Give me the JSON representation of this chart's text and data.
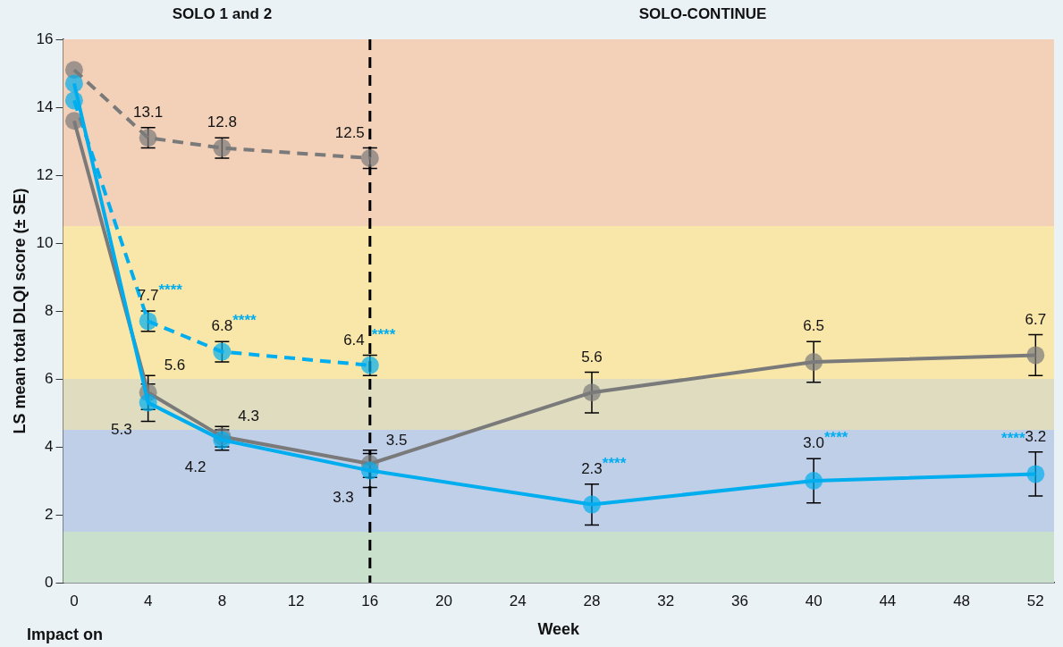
{
  "chart_data": {
    "type": "line",
    "xlabel": "Week",
    "ylabel": "LS mean total DLQI score (± SE)",
    "xlim": [
      -0.6,
      53
    ],
    "xticks": [
      0,
      4,
      8,
      12,
      16,
      20,
      24,
      28,
      32,
      36,
      40,
      44,
      48,
      52
    ],
    "ylim": [
      0,
      16
    ],
    "yticks": [
      0,
      2,
      4,
      6,
      8,
      10,
      12,
      14,
      16
    ],
    "grid": false,
    "legend": false,
    "marker": "circle",
    "series": [
      {
        "color": "#7a7a7a",
        "line_style": "dashed",
        "x": [
          0,
          4,
          8,
          16
        ],
        "values": [
          15.1,
          13.1,
          12.8,
          12.5
        ],
        "errors": [
          null,
          0.3,
          0.3,
          0.3
        ],
        "value_labels": [
          null,
          "13.1",
          "12.8",
          "12.5"
        ]
      },
      {
        "color": "#00aeef",
        "line_style": "dashed",
        "x": [
          0,
          4,
          8,
          16
        ],
        "values": [
          14.2,
          7.7,
          6.8,
          6.4
        ],
        "errors": [
          null,
          0.3,
          0.3,
          0.3
        ],
        "value_labels": [
          null,
          "7.7",
          "6.8",
          "6.4"
        ]
      },
      {
        "color": "#7a7a7a",
        "line_style": "solid",
        "x": [
          0,
          4,
          8,
          16,
          28,
          40,
          52
        ],
        "values": [
          13.6,
          5.6,
          4.3,
          3.5,
          5.6,
          6.5,
          6.7
        ],
        "errors": [
          null,
          0.5,
          0.3,
          0.4,
          0.6,
          0.6,
          0.6
        ],
        "value_labels": [
          null,
          "5.6",
          "4.3",
          "3.5",
          "5.6",
          "6.5",
          "6.7"
        ]
      },
      {
        "color": "#00aeef",
        "line_style": "solid",
        "x": [
          0,
          4,
          8,
          16,
          28,
          40,
          52
        ],
        "values": [
          14.7,
          5.3,
          4.2,
          3.3,
          2.3,
          3.0,
          3.2
        ],
        "errors": [
          null,
          0.55,
          0.3,
          0.5,
          0.6,
          0.65,
          0.65
        ],
        "value_labels": [
          null,
          "5.3",
          "4.2",
          "3.3",
          "2.3",
          "3.0",
          "3.2"
        ]
      }
    ],
    "ref_lines": [
      {
        "axis": "x",
        "value": 16,
        "color": "#000000",
        "line_style": "dashed"
      }
    ],
    "bands": [
      {
        "axis": "y",
        "from": 0,
        "to": 1.5,
        "color": "#c8e0cc"
      },
      {
        "axis": "y",
        "from": 1.5,
        "to": 4.5,
        "color": "#bfcfe8"
      },
      {
        "axis": "y",
        "from": 4.5,
        "to": 6,
        "color": "#e0dcc0"
      },
      {
        "axis": "y",
        "from": 6,
        "to": 10.5,
        "color": "#f9e6a9"
      },
      {
        "axis": "y",
        "from": 10.5,
        "to": 16,
        "color": "#f3d1b8"
      }
    ],
    "annotations": [
      {
        "text": "SOLO 1 and 2",
        "x": 8,
        "y": 16
      },
      {
        "text": "SOLO-CONTINUE",
        "x": 34,
        "y": 16
      },
      {
        "text": "****",
        "x": 4,
        "y": 7.7
      },
      {
        "text": "****",
        "x": 8,
        "y": 6.8
      },
      {
        "text": "****",
        "x": 16,
        "y": 6.4
      },
      {
        "text": "****",
        "x": 28,
        "y": 2.3
      },
      {
        "text": "****",
        "x": 40,
        "y": 3.0
      },
      {
        "text": "****",
        "x": 52,
        "y": 3.2
      },
      "Impact on"
    ]
  }
}
